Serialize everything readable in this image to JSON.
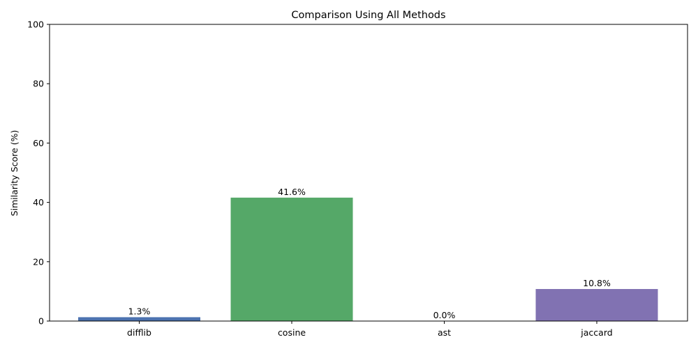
{
  "chart_data": {
    "type": "bar",
    "title": "Comparison Using All Methods",
    "xlabel": "",
    "ylabel": "Similarity Score (%)",
    "categories": [
      "difflib",
      "cosine",
      "ast",
      "jaccard"
    ],
    "values": [
      1.3,
      41.6,
      0.0,
      10.8
    ],
    "value_labels": [
      "1.3%",
      "41.6%",
      "0.0%",
      "10.8%"
    ],
    "colors": [
      "#4c72b0",
      "#55a868",
      "#c44e52",
      "#8172b2"
    ],
    "ylim": [
      0,
      100
    ],
    "yticks": [
      0,
      20,
      40,
      60,
      80,
      100
    ],
    "grid": false,
    "legend": "none"
  }
}
